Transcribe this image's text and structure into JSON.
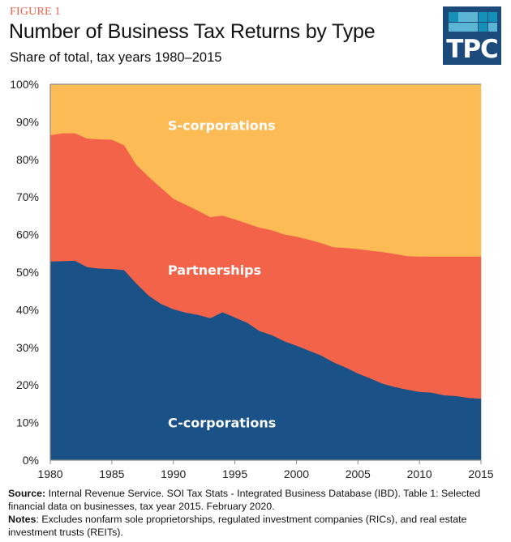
{
  "header": {
    "figure_label": "FIGURE 1",
    "title": "Number of Business Tax Returns by Type",
    "subtitle": "Share of total, tax years 1980–2015"
  },
  "logo": {
    "text": "TPC",
    "background": "#1C4A7A",
    "squares": [
      [
        "#1590B8",
        "#5BB6D6",
        "#5BB6D6",
        "#1590B8",
        "#1590B8"
      ],
      [
        "#5BB6D6",
        "#5BB6D6",
        "#5BB6D6",
        "#1590B8",
        "#5BB6D6"
      ]
    ]
  },
  "footer": {
    "source_label": "Source:",
    "source_text": " Internal Revenue Service. SOI Tax Stats - Integrated Business Database (IBD). Table 1: Selected financial data on businesses, tax year 2015. February 2020.",
    "notes_label": "Notes",
    "notes_text": ": Excludes nonfarm sole proprietorships, regulated investment companies (RICs), and real estate investment trusts (REITs)."
  },
  "chart_data": {
    "type": "area",
    "stacked": true,
    "title": "Number of Business Tax Returns by Type",
    "subtitle": "Share of total, tax years 1980–2015",
    "xlabel": "",
    "ylabel": "",
    "x": [
      1980,
      1981,
      1982,
      1983,
      1984,
      1985,
      1986,
      1987,
      1988,
      1989,
      1990,
      1991,
      1992,
      1993,
      1994,
      1995,
      1996,
      1997,
      1998,
      1999,
      2000,
      2001,
      2002,
      2003,
      2004,
      2005,
      2006,
      2007,
      2008,
      2009,
      2010,
      2011,
      2012,
      2013,
      2014,
      2015
    ],
    "xlim": [
      1980,
      2015
    ],
    "ylim": [
      0,
      100
    ],
    "x_ticks": [
      1980,
      1985,
      1990,
      1995,
      2000,
      2005,
      2010,
      2015
    ],
    "x_tick_labels": [
      "1980",
      "1985",
      "1990",
      "1995",
      "2000",
      "2005",
      "2010",
      "2015"
    ],
    "y_ticks": [
      0,
      10,
      20,
      30,
      40,
      50,
      60,
      70,
      80,
      90,
      100
    ],
    "y_tick_labels": [
      "0%",
      "10%",
      "20%",
      "30%",
      "40%",
      "50%",
      "60%",
      "70%",
      "80%",
      "90%",
      "100%"
    ],
    "grid": false,
    "legend": "inline-labels",
    "series": [
      {
        "name": "C-corporations",
        "color": "#1A5186",
        "values": [
          52.9,
          53.0,
          53.1,
          51.4,
          51.0,
          50.9,
          50.6,
          47.0,
          43.8,
          41.6,
          40.2,
          39.3,
          38.7,
          37.8,
          39.4,
          38.0,
          36.6,
          34.4,
          33.3,
          31.7,
          30.5,
          29.2,
          27.9,
          26.1,
          24.7,
          23.1,
          21.8,
          20.4,
          19.5,
          18.8,
          18.2,
          18.0,
          17.3,
          17.1,
          16.6,
          16.4
        ]
      },
      {
        "name": "Partnerships",
        "color": "#F26349",
        "values": [
          33.6,
          34.0,
          33.9,
          34.2,
          34.4,
          34.4,
          33.2,
          31.6,
          31.6,
          30.9,
          29.4,
          28.7,
          27.7,
          26.9,
          25.7,
          26.1,
          26.4,
          27.5,
          27.9,
          28.4,
          29.0,
          29.5,
          29.9,
          30.6,
          31.8,
          33.1,
          34.0,
          35.0,
          35.4,
          35.5,
          36.0,
          36.2,
          36.9,
          37.1,
          37.6,
          37.8
        ]
      },
      {
        "name": "S-corporations",
        "color": "#FDBB55",
        "values": [
          13.5,
          13.0,
          13.0,
          14.4,
          14.6,
          14.7,
          16.2,
          21.4,
          24.6,
          27.5,
          30.4,
          32.0,
          33.6,
          35.3,
          34.9,
          35.9,
          37.0,
          38.1,
          38.8,
          39.9,
          40.5,
          41.3,
          42.2,
          43.3,
          43.5,
          43.8,
          44.2,
          44.6,
          45.1,
          45.7,
          45.8,
          45.8,
          45.8,
          45.8,
          45.8,
          45.8
        ]
      }
    ],
    "annotations": [
      {
        "text": "S-corporations",
        "series": "S-corporations"
      },
      {
        "text": "Partnerships",
        "series": "Partnerships"
      },
      {
        "text": "C-corporations",
        "series": "C-corporations"
      }
    ]
  }
}
